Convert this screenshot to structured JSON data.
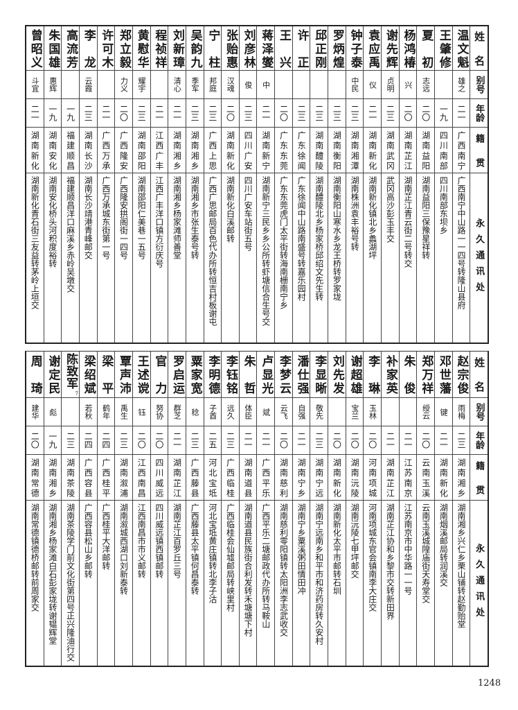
{
  "headers": {
    "name": "姓名",
    "alias": "别号",
    "age": "年龄",
    "origin": "籍贯",
    "address": "永久通讯处"
  },
  "top_table": [
    {
      "name": "温文魁",
      "alias": "雄之",
      "age": "二一",
      "origin": "广西南宁",
      "address": "广西南宁中山路一一四号转隆山县府"
    },
    {
      "name": "王肇修",
      "alias": "",
      "age": "一九",
      "origin": "四川南部",
      "address": "四川南部东坝乡"
    },
    {
      "name": "夏初",
      "alias": "志远",
      "age": "二〇",
      "origin": "湖南益阳",
      "address": "湖南益阳三保豫星祥转"
    },
    {
      "name": "杨鸿椿",
      "alias": "兴",
      "age": "二〇",
      "origin": "湖南芷江",
      "address": "湖南芷江青云街二号转交"
    },
    {
      "name": "谢先辉",
      "alias": "贞明",
      "age": "二三",
      "origin": "湖南武冈",
      "address": "武冈高沙彭玉丰交"
    },
    {
      "name": "袁应禹",
      "alias": "仪",
      "age": "二一",
      "origin": "湖南新化",
      "address": "湖南新化镇北乡蠡湖坪"
    },
    {
      "name": "钟子泰",
      "alias": "中民",
      "age": "二三",
      "origin": "湖南湘潭",
      "address": "湖南株洲袁丰裕号转"
    },
    {
      "name": "罗炳煌",
      "alias": "",
      "age": "二三",
      "origin": "湖南衡阳",
      "address": "湖南衡阳山寒水乡龙王桥转罗家垅"
    },
    {
      "name": "邱正刚",
      "alias": "",
      "age": "二三",
      "origin": "湖南醴陵",
      "address": "湖南醴陵北乡杨家桥邱绍文先生转"
    },
    {
      "name": "许正",
      "alias": "",
      "age": "二三",
      "origin": "广东徐闻",
      "address": "广东徐闻中山路南盛号转嘉乐园村"
    },
    {
      "name": "王兴",
      "alias": "",
      "age": "二〇",
      "origin": "广东东莞",
      "address": "广东东莞虎门太平街转海南栅南宁乡"
    },
    {
      "name": "蒋泽燮",
      "alias": "中",
      "age": "二一",
      "origin": "湖南新宁",
      "address": "湖南新宁三民乡乡公所转虾塘信合生号交"
    },
    {
      "name": "刘彦林",
      "alias": "俊",
      "age": "二三",
      "origin": "四川广安",
      "address": "四川广安车站街五号"
    },
    {
      "name": "张贻惠",
      "alias": "汉魂",
      "age": "二〇",
      "origin": "湖南新化",
      "address": "湖南新化白溪邮转"
    },
    {
      "name": "宁柱",
      "alias": "邦庭",
      "age": "二三",
      "origin": "广西上思",
      "address": "广西广思邮局百色代办所转恒吉村板谢屯"
    },
    {
      "name": "吴韵九",
      "alias": "季军",
      "age": "二三",
      "origin": "湖南湘乡",
      "address": "湖南湘乡市张生泰号转"
    },
    {
      "name": "刘新璋",
      "alias": "清心",
      "age": "二一",
      "origin": "湖南湘乡",
      "address": "湖南湘乡杨家滩师善堂"
    },
    {
      "name": "程祯祥",
      "alias": "",
      "age": "二一",
      "origin": "江西广丰",
      "address": "江西广丰洋口镇方衍庆号"
    },
    {
      "name": "黄慰华",
      "alias": "耀宇",
      "age": "二三",
      "origin": "湖南邵阳",
      "address": "湖南邵阳仁美巷一五号"
    },
    {
      "name": "郑立毅",
      "alias": "力义",
      "age": "二〇",
      "origin": "广西隆安",
      "address": "广西隆安拱阁街一四号"
    },
    {
      "name": "许可木",
      "alias": "",
      "age": "二一",
      "origin": "广西万承",
      "address": "广西万承城东街第一号"
    },
    {
      "name": "李龙",
      "alias": "云霞",
      "age": "二三",
      "origin": "湖南长沙",
      "address": "湖南长沙靖港青峰邮交"
    },
    {
      "name": "高流芳",
      "alias": "",
      "age": "一九",
      "origin": "福建顺昌",
      "address": "福建顺昌洋口麻溪乡赤岭吴墩交"
    },
    {
      "name": "朱国雄",
      "alias": "惠辉",
      "age": "一九",
      "origin": "湖南安化",
      "address": "湖南安化桥头河积度裕转"
    },
    {
      "name": "曾昭义",
      "alias": "斗宜",
      "age": "二一",
      "origin": "湖南新化",
      "address": "湖南新化青石街三友益转茅岭上垣交"
    }
  ],
  "bottom_table": [
    {
      "name": "赵宗俊",
      "alias": "雨梅",
      "age": "二三",
      "origin": "湖南湘乡",
      "address": "湖南湘乡兴仁乡栗山铺转赵勤贻堂"
    },
    {
      "name": "邓世藩",
      "alias": "键",
      "age": "二一",
      "origin": "湖南新化",
      "address": "湖南烟溪邮局转润溪交"
    },
    {
      "name": "郑万祥",
      "alias": "绶云",
      "age": "二〇",
      "origin": "云南玉溪",
      "address": "云南玉溪城隍庙街天寿堂交"
    },
    {
      "name": "朱俊",
      "alias": "",
      "age": "二一",
      "origin": "江苏南京",
      "address": "江苏南京市中华路一一号"
    },
    {
      "name": "补家英",
      "alias": "",
      "age": "二一",
      "origin": "湖南芷江",
      "address": "湖南芷江协和乡黎市交转新田界"
    },
    {
      "name": "李琳",
      "alias": "玉林",
      "age": "二〇",
      "origin": "河南项城",
      "address": "河南项城东官会镇南李大庄交"
    },
    {
      "name": "谢超雄",
      "alias": "宝兰",
      "age": "二〇",
      "origin": "湖南沅陵",
      "address": "湖南沅陵七甲坪邮交"
    },
    {
      "name": "刘先发",
      "alias": "",
      "age": "二〇",
      "origin": "湖南新化",
      "address": "湖南新化太平市邮转石圳"
    },
    {
      "name": "李显晰",
      "alias": "敬先",
      "age": "二三",
      "origin": "湖南宁远",
      "address": "湖南宁远南乡和平市和济药房转久安村"
    },
    {
      "name": "潘仕强",
      "alias": "自强",
      "age": "二一",
      "origin": "湖南宁乡",
      "address": "湖南宁乡粟溪粥田情田冲"
    },
    {
      "name": "李梦云",
      "alias": "云飞",
      "age": "二〇",
      "origin": "湖南慈利",
      "address": "湖南慈利零阳镇转太阳洲李志武收交"
    },
    {
      "name": "卢显光",
      "alias": "斌",
      "age": "二一",
      "origin": "广西平乐",
      "address": "广西平乐二塘邮政代办所转马鞍山"
    },
    {
      "name": "朱哲",
      "alias": "体臣",
      "age": "二一",
      "origin": "湖南道县",
      "address": "湖南道县民族街合利发转禾塘塘下村"
    },
    {
      "name": "李钰铭",
      "alias": "远久",
      "age": "二三",
      "origin": "广西临桂",
      "address": "广西临桂会仙墟邮局转峡里村"
    },
    {
      "name": "李明德",
      "alias": "子酋",
      "age": "二五",
      "origin": "河北宝坻",
      "address": "河北宝坻黄庄镇转北李子沽"
    },
    {
      "name": "粟家宽",
      "alias": "稔",
      "age": "二三",
      "origin": "广西藤县",
      "address": "广西藤县太平镇何昌泰转"
    },
    {
      "name": "罗启运",
      "alias": "群芝",
      "age": "二一",
      "origin": "湖南芷江",
      "address": "湖南芷江百罗丘三号"
    },
    {
      "name": "官力",
      "alias": "努协",
      "age": "二〇",
      "origin": "四川威远",
      "address": "四川威远镇西镇邮转"
    },
    {
      "name": "王述谠",
      "alias": "钰",
      "age": "二〇",
      "origin": "江西南昌",
      "address": "江西南昌市市义邮转"
    },
    {
      "name": "覃声沛",
      "alias": "禹生",
      "age": "二三",
      "origin": "湖南溆浦",
      "address": "湖南溆城西湖口刘新泰转"
    },
    {
      "name": "梁平",
      "alias": "鹤年",
      "age": "二四",
      "origin": "广西桂平",
      "address": "广西桂平大洋邮转"
    },
    {
      "name": "梁绍斌",
      "alias": "若秋",
      "age": "二四",
      "origin": "广西容县",
      "address": "广西容县松山乡邮转"
    },
    {
      "name": "陈致军",
      "note": "7",
      "alias": "",
      "age": "二三",
      "origin": "湖南茶陵",
      "address": "湖南茶陵学门前文化街第四号正兴隆油行交"
    },
    {
      "name": "谢定民",
      "alias": "彪",
      "age": "一九",
      "origin": "湖南湘乡",
      "address": "湖南湘乡杨家滩白石彭家垅转谢韫辉堂"
    },
    {
      "name": "周琦",
      "alias": "建华",
      "age": "二〇",
      "origin": "湖南常德",
      "address": "湖南常德镇德桥邮转前周家交"
    }
  ],
  "page_number": "1248"
}
